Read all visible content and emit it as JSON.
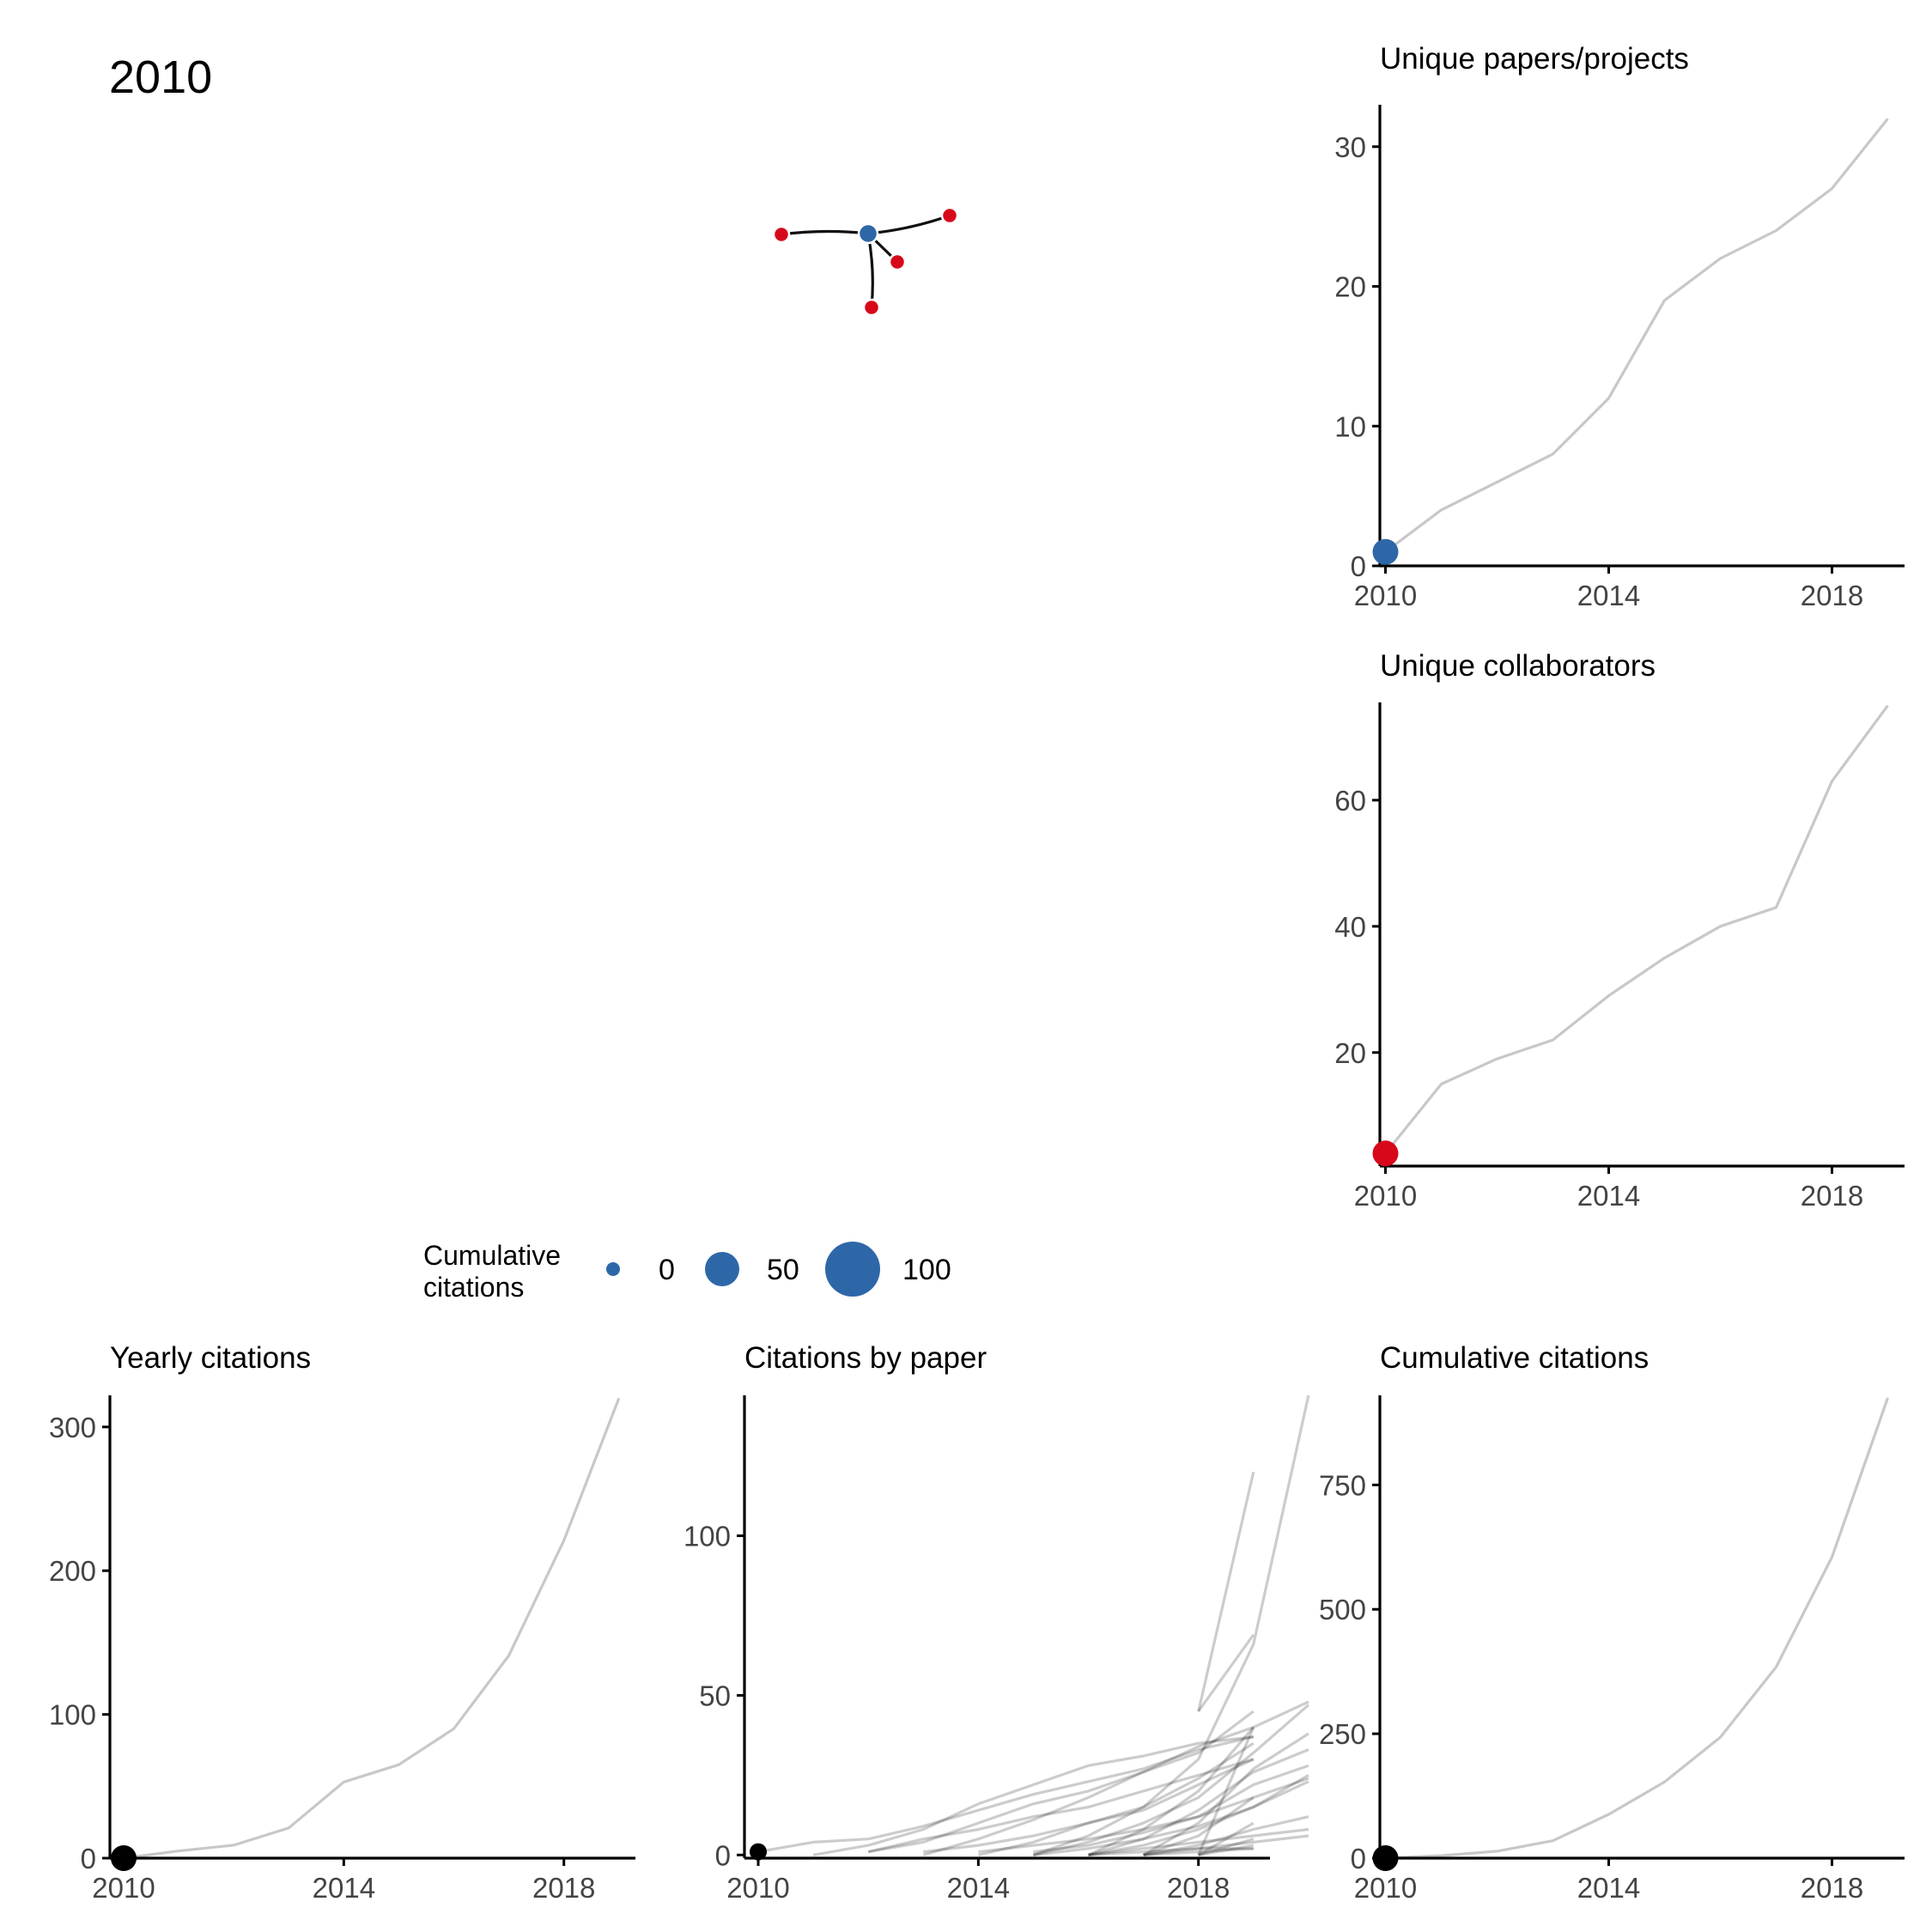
{
  "year_label": "2010",
  "colors": {
    "paper": "#2E67A8",
    "collaborator": "#D7081A",
    "line": "#C8C8C8",
    "axis": "#000000",
    "edge": "#111111"
  },
  "network": {
    "nodes": [
      {
        "id": "p1",
        "kind": "paper"
      },
      {
        "id": "c1",
        "kind": "collaborator"
      },
      {
        "id": "c2",
        "kind": "collaborator"
      },
      {
        "id": "c3",
        "kind": "collaborator"
      },
      {
        "id": "c4",
        "kind": "collaborator"
      }
    ],
    "edges": [
      [
        "p1",
        "c1"
      ],
      [
        "p1",
        "c2"
      ],
      [
        "p1",
        "c3"
      ],
      [
        "p1",
        "c4"
      ]
    ]
  },
  "legend": {
    "title_line1": "Cumulative",
    "title_line2": "citations",
    "entries": [
      {
        "label": "0",
        "value": 0
      },
      {
        "label": "50",
        "value": 50
      },
      {
        "label": "100",
        "value": 100
      }
    ]
  },
  "chart_data": [
    {
      "id": "papers",
      "type": "line",
      "title": "Unique papers/projects",
      "xlabel": "",
      "ylabel": "",
      "x_ticks": [
        2010,
        2014,
        2018
      ],
      "y_ticks": [
        0,
        10,
        20,
        30
      ],
      "xlim": [
        2009.9,
        2019.3
      ],
      "ylim": [
        0,
        33
      ],
      "x": [
        2010,
        2011,
        2012,
        2013,
        2014,
        2015,
        2016,
        2017,
        2018,
        2019
      ],
      "values": [
        1,
        4,
        6,
        8,
        12,
        19,
        22,
        24,
        27,
        32
      ],
      "highlight": {
        "x": 2010,
        "y": 1,
        "color": "#2E67A8"
      }
    },
    {
      "id": "collaborators",
      "type": "line",
      "title": "Unique collaborators",
      "xlabel": "",
      "ylabel": "",
      "x_ticks": [
        2010,
        2014,
        2018
      ],
      "y_ticks": [
        20,
        40,
        60
      ],
      "xlim": [
        2009.9,
        2019.3
      ],
      "ylim": [
        2,
        75.5
      ],
      "x": [
        2010,
        2011,
        2012,
        2013,
        2014,
        2015,
        2016,
        2017,
        2018,
        2019
      ],
      "values": [
        4,
        15,
        19,
        22,
        29,
        35,
        40,
        43,
        63,
        75
      ],
      "highlight": {
        "x": 2010,
        "y": 4,
        "color": "#D7081A"
      }
    },
    {
      "id": "yearly",
      "type": "line",
      "title": "Yearly citations",
      "xlabel": "",
      "ylabel": "",
      "x_ticks": [
        2010,
        2014,
        2018
      ],
      "y_ticks": [
        0,
        100,
        200,
        300
      ],
      "xlim": [
        2009.75,
        2019.3
      ],
      "ylim": [
        0,
        322
      ],
      "x": [
        2010,
        2011,
        2012,
        2013,
        2014,
        2015,
        2016,
        2017,
        2018,
        2019
      ],
      "values": [
        0,
        5,
        9,
        21,
        53,
        65,
        90,
        141,
        221,
        320
      ],
      "highlight": {
        "x": 2010,
        "y": 0,
        "color": "#000000"
      }
    },
    {
      "id": "bypaper",
      "type": "line",
      "title": "Citations by paper",
      "xlabel": "",
      "ylabel": "",
      "x_ticks": [
        2010,
        2014,
        2018
      ],
      "y_ticks": [
        0,
        50,
        100
      ],
      "xlim": [
        2009.75,
        2019.3
      ],
      "ylim": [
        -1,
        144
      ],
      "highlight": {
        "x": 2010,
        "y": 1,
        "color": "#000000"
      },
      "series": [
        {
          "start": 2010,
          "values": [
            1,
            4,
            5,
            9,
            14,
            19,
            23,
            27,
            33,
            37
          ]
        },
        {
          "start": 2011,
          "values": [
            0,
            3,
            8,
            16,
            22,
            28,
            31,
            35,
            37
          ]
        },
        {
          "start": 2012,
          "values": [
            1,
            4,
            10,
            16,
            20,
            26,
            32,
            45
          ]
        },
        {
          "start": 2012,
          "values": [
            1,
            5,
            8,
            12,
            15,
            20,
            25,
            30
          ]
        },
        {
          "start": 2013,
          "values": [
            0,
            5,
            11,
            18,
            26,
            34,
            40
          ]
        },
        {
          "start": 2013,
          "values": [
            1,
            3,
            6,
            10,
            15,
            24,
            35
          ]
        },
        {
          "start": 2014,
          "values": [
            0,
            4,
            10,
            14,
            22,
            30
          ]
        },
        {
          "start": 2014,
          "values": [
            1,
            3,
            5,
            8,
            12,
            18
          ]
        },
        {
          "start": 2015,
          "values": [
            0,
            6,
            15,
            30,
            66,
            144
          ]
        },
        {
          "start": 2015,
          "values": [
            0,
            4,
            10,
            18,
            32,
            47
          ]
        },
        {
          "start": 2015,
          "values": [
            1,
            3,
            7,
            12,
            22,
            28
          ]
        },
        {
          "start": 2015,
          "values": [
            0,
            2,
            5,
            9,
            15,
            25
          ]
        },
        {
          "start": 2016,
          "values": [
            0,
            8,
            20,
            40,
            48
          ]
        },
        {
          "start": 2016,
          "values": [
            0,
            5,
            14,
            26,
            33
          ]
        },
        {
          "start": 2016,
          "values": [
            0,
            3,
            8,
            15,
            23
          ]
        },
        {
          "start": 2016,
          "values": [
            0,
            2,
            4,
            6,
            8
          ]
        },
        {
          "start": 2017,
          "values": [
            0,
            10,
            27,
            38
          ]
        },
        {
          "start": 2017,
          "values": [
            0,
            6,
            18,
            24
          ]
        },
        {
          "start": 2017,
          "values": [
            0,
            3,
            8,
            12
          ]
        },
        {
          "start": 2017,
          "values": [
            0,
            2,
            4,
            6
          ]
        },
        {
          "start": 2018,
          "values": [
            45,
            120
          ]
        },
        {
          "start": 2018,
          "values": [
            45,
            69
          ]
        },
        {
          "start": 2018,
          "values": [
            0,
            40
          ]
        },
        {
          "start": 2018,
          "values": [
            0,
            10
          ]
        },
        {
          "start": 2018,
          "values": [
            0,
            5
          ]
        },
        {
          "start": 2018,
          "values": [
            0,
            3
          ]
        },
        {
          "start": 2017,
          "values": [
            0,
            1,
            2
          ]
        },
        {
          "start": 2016,
          "values": [
            0,
            1,
            2,
            2
          ]
        }
      ]
    },
    {
      "id": "cumulative",
      "type": "line",
      "title": "Cumulative citations",
      "xlabel": "",
      "ylabel": "",
      "x_ticks": [
        2010,
        2014,
        2018
      ],
      "y_ticks": [
        0,
        250,
        500,
        750
      ],
      "xlim": [
        2009.9,
        2019.3
      ],
      "ylim": [
        0,
        930
      ],
      "x": [
        2010,
        2011,
        2012,
        2013,
        2014,
        2015,
        2016,
        2017,
        2018,
        2019
      ],
      "values": [
        0,
        5,
        14,
        35,
        88,
        153,
        243,
        384,
        605,
        925
      ],
      "highlight": {
        "x": 2010,
        "y": 0,
        "color": "#000000"
      }
    }
  ]
}
